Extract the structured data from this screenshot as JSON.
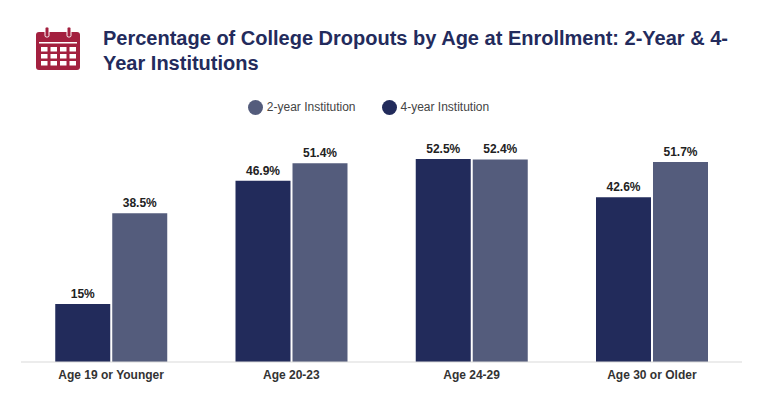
{
  "chart_data": {
    "type": "bar",
    "title": "Percentage of College Dropouts by Age at Enrollment: 2-Year & 4-Year Institutions",
    "categories": [
      "Age 19 or Younger",
      "Age 20-23",
      "Age 24-29",
      "Age 30 or Older"
    ],
    "series": [
      {
        "name": "4-year Institution",
        "color": "#222b5b",
        "values": [
          15,
          46.9,
          52.5,
          42.6
        ],
        "value_labels": [
          "15%",
          "46.9%",
          "52.5%",
          "42.6%"
        ]
      },
      {
        "name": "2-year Institution",
        "color": "#545c7c",
        "values": [
          38.5,
          51.4,
          52.4,
          51.7
        ],
        "value_labels": [
          "38.5%",
          "51.4%",
          "52.4%",
          "51.7%"
        ]
      }
    ],
    "ylim": [
      0,
      60
    ],
    "grid": false,
    "legend": "top",
    "data_labels": true,
    "tick_labels": "x"
  }
}
